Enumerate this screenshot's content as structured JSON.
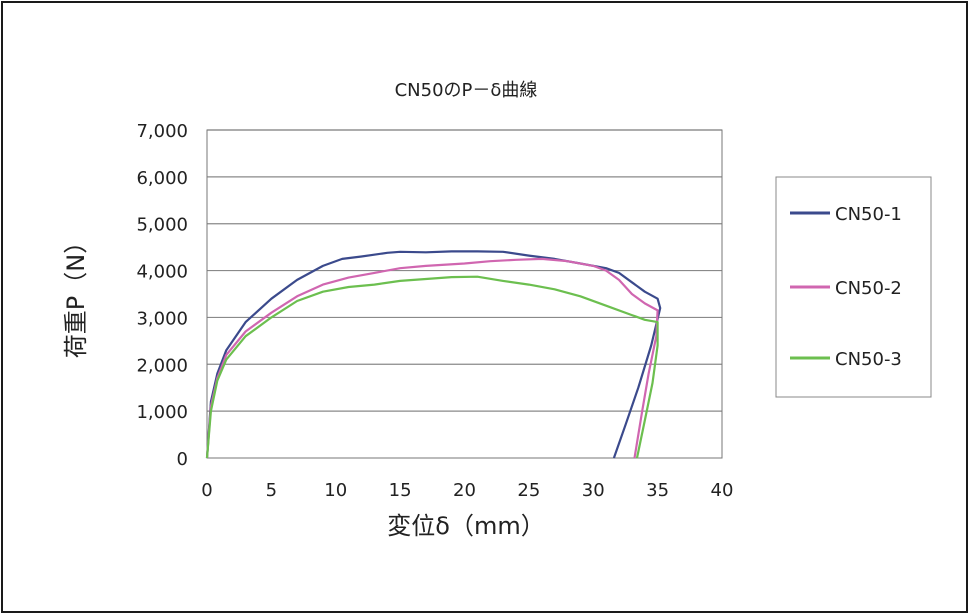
{
  "chart_data": {
    "type": "line",
    "title": "CN50のP－δ曲線",
    "xlabel": "変位δ（mm）",
    "ylabel": "荷重P（N）",
    "xlim": [
      0,
      40
    ],
    "ylim": [
      0,
      7000
    ],
    "x_ticks": [
      0,
      5,
      10,
      15,
      20,
      25,
      30,
      35,
      40
    ],
    "x_tick_labels": [
      "0",
      "5",
      "10",
      "15",
      "20",
      "25",
      "30",
      "35",
      "40"
    ],
    "y_ticks": [
      0,
      1000,
      2000,
      3000,
      4000,
      5000,
      6000,
      7000
    ],
    "y_tick_labels": [
      "0",
      "1,000",
      "2,000",
      "3,000",
      "4,000",
      "5,000",
      "6,000",
      "7,000"
    ],
    "grid": "horizontal",
    "legend_position": "right",
    "series": [
      {
        "name": "CN50-1",
        "color": "#3b4a8c",
        "points": [
          [
            0,
            0
          ],
          [
            0.3,
            1200
          ],
          [
            0.8,
            1800
          ],
          [
            1.5,
            2300
          ],
          [
            3,
            2900
          ],
          [
            5,
            3400
          ],
          [
            7,
            3800
          ],
          [
            9,
            4100
          ],
          [
            10.5,
            4250
          ],
          [
            12,
            4300
          ],
          [
            14,
            4380
          ],
          [
            15,
            4400
          ],
          [
            17,
            4390
          ],
          [
            19,
            4410
          ],
          [
            21,
            4410
          ],
          [
            23,
            4400
          ],
          [
            25,
            4320
          ],
          [
            27,
            4250
          ],
          [
            29,
            4150
          ],
          [
            31,
            4050
          ],
          [
            32,
            3950
          ],
          [
            33,
            3750
          ],
          [
            34,
            3550
          ],
          [
            35,
            3400
          ],
          [
            35.2,
            3200
          ],
          [
            34.5,
            2400
          ],
          [
            33.5,
            1500
          ],
          [
            32.5,
            700
          ],
          [
            31.6,
            0
          ]
        ]
      },
      {
        "name": "CN50-2",
        "color": "#d066b0",
        "points": [
          [
            0,
            0
          ],
          [
            0.3,
            1100
          ],
          [
            0.8,
            1700
          ],
          [
            1.5,
            2200
          ],
          [
            3,
            2700
          ],
          [
            5,
            3100
          ],
          [
            7,
            3450
          ],
          [
            9,
            3700
          ],
          [
            11,
            3850
          ],
          [
            13,
            3950
          ],
          [
            15,
            4050
          ],
          [
            17,
            4100
          ],
          [
            20,
            4150
          ],
          [
            22,
            4200
          ],
          [
            24,
            4230
          ],
          [
            26,
            4250
          ],
          [
            28,
            4200
          ],
          [
            30,
            4100
          ],
          [
            31,
            4000
          ],
          [
            32,
            3800
          ],
          [
            33,
            3500
          ],
          [
            34,
            3300
          ],
          [
            35,
            3150
          ],
          [
            34.9,
            2600
          ],
          [
            34.3,
            1800
          ],
          [
            33.8,
            1000
          ],
          [
            33.2,
            0
          ]
        ]
      },
      {
        "name": "CN50-3",
        "color": "#6cbf4f",
        "points": [
          [
            0,
            0
          ],
          [
            0.3,
            1000
          ],
          [
            0.8,
            1650
          ],
          [
            1.5,
            2100
          ],
          [
            3,
            2600
          ],
          [
            5,
            3000
          ],
          [
            7,
            3350
          ],
          [
            9,
            3550
          ],
          [
            11,
            3650
          ],
          [
            13,
            3700
          ],
          [
            15,
            3780
          ],
          [
            17,
            3820
          ],
          [
            19,
            3860
          ],
          [
            21,
            3870
          ],
          [
            23,
            3780
          ],
          [
            25,
            3700
          ],
          [
            27,
            3600
          ],
          [
            29,
            3450
          ],
          [
            31,
            3250
          ],
          [
            33,
            3050
          ],
          [
            34,
            2950
          ],
          [
            35,
            2900
          ],
          [
            35,
            2400
          ],
          [
            34.6,
            1600
          ],
          [
            34,
            800
          ],
          [
            33.4,
            0
          ]
        ]
      }
    ]
  }
}
